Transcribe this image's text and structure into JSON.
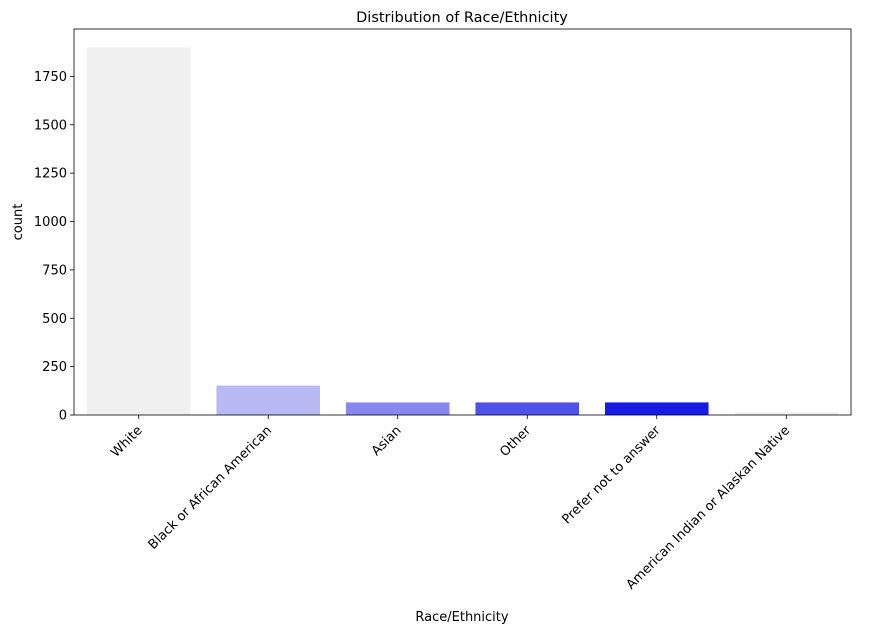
{
  "chart_data": {
    "type": "bar",
    "title": "Distribution of Race/Ethnicity",
    "xlabel": "Race/Ethnicity",
    "ylabel": "count",
    "categories": [
      "White",
      "Black or African American",
      "Asian",
      "Other",
      "Prefer not to answer",
      "American Indian or Alaskan Native"
    ],
    "values": [
      1900,
      152,
      65,
      65,
      65,
      15
    ],
    "colors": [
      "#f0f0f0",
      "#b9b9f4",
      "#8787ef",
      "#5050ea",
      "#1a1ae6",
      "#f0f0f0"
    ],
    "yticks": [
      0,
      250,
      500,
      750,
      1000,
      1250,
      1500,
      1750
    ],
    "ylim": [
      0,
      1995
    ],
    "grid": false,
    "legend": "none"
  }
}
